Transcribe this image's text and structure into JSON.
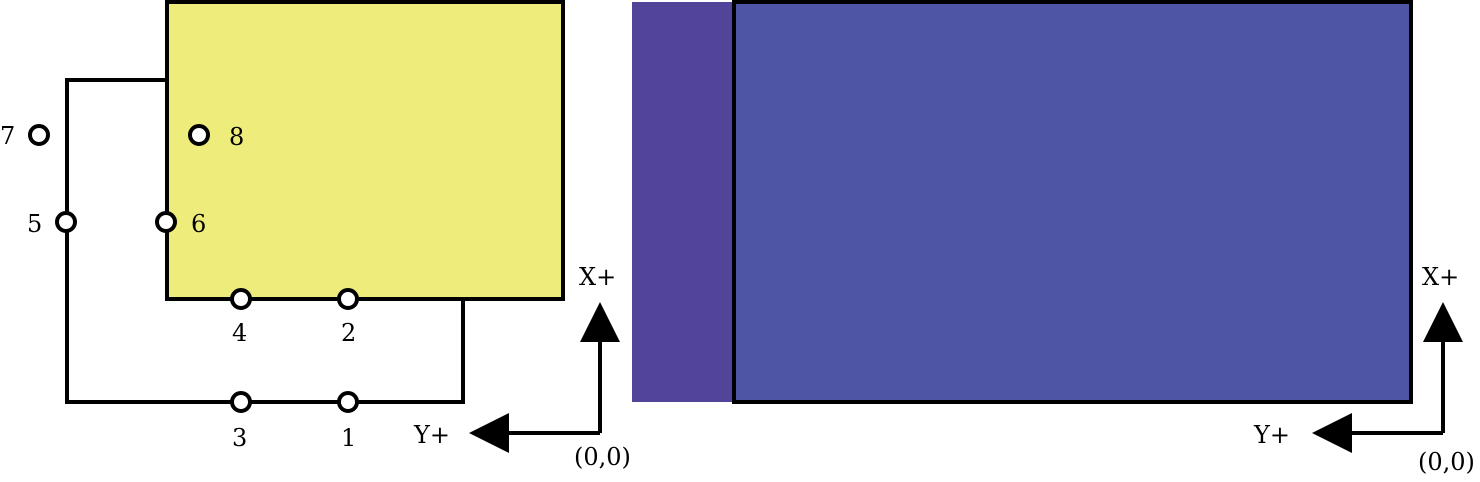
{
  "colors": {
    "yellow_panel": "#eeec7a",
    "purple_strip": "#524599",
    "blue_panel": "#4d55a4",
    "line": "#000000",
    "background": "#ffffff"
  },
  "left_diagram": {
    "nodes": {
      "n1": "1",
      "n2": "2",
      "n3": "3",
      "n4": "4",
      "n5": "5",
      "n6": "6",
      "n7": "7",
      "n8": "8"
    },
    "axes": {
      "x_label": "X+",
      "y_label": "Y+",
      "origin_label": "(0,0)"
    }
  },
  "right_diagram": {
    "axes": {
      "x_label": "X+",
      "y_label": "Y+",
      "origin_label": "(0,0)"
    }
  }
}
